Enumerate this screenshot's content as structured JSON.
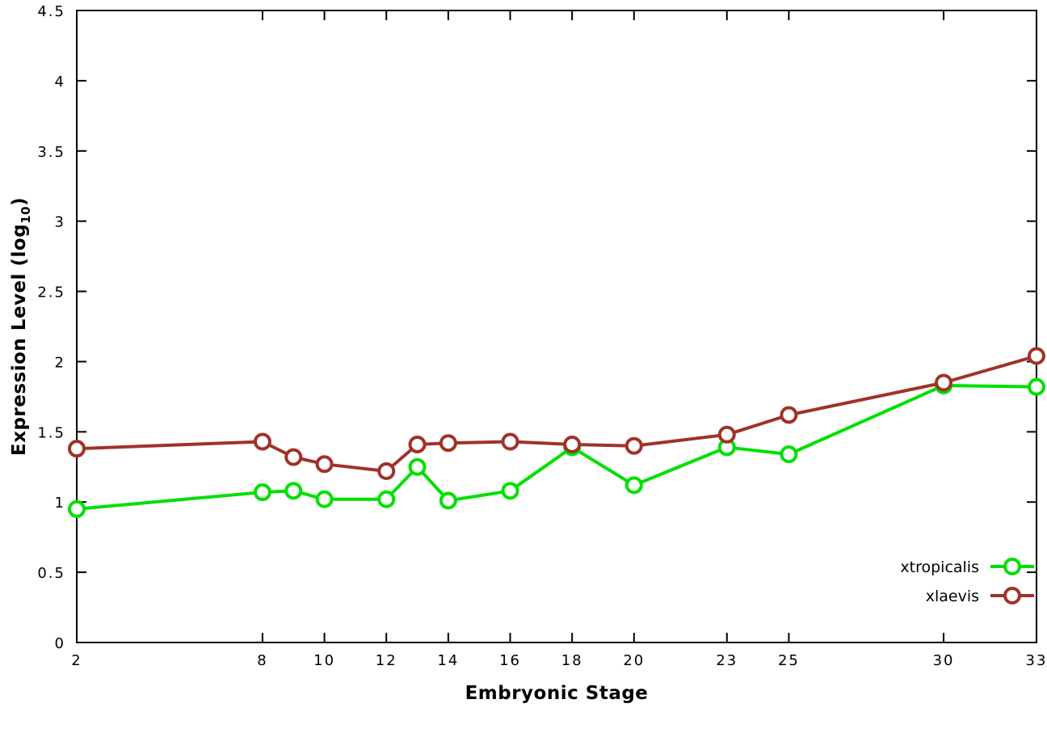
{
  "chart_data": {
    "type": "line",
    "title": "",
    "xlabel": "Embryonic Stage",
    "ylabel": "Expression Level (log10)",
    "ylabel_parts": {
      "pre": "Expression Level (log",
      "sub": "10",
      "post": ")"
    },
    "x": [
      2,
      8,
      9,
      10,
      12,
      13,
      14,
      16,
      18,
      20,
      23,
      25,
      30,
      33
    ],
    "xticks": [
      2,
      8,
      10,
      12,
      14,
      16,
      18,
      20,
      23,
      25,
      30,
      33
    ],
    "yticks": [
      0,
      0.5,
      1,
      1.5,
      2,
      2.5,
      3,
      3.5,
      4,
      4.5
    ],
    "xlim": [
      2,
      33
    ],
    "ylim": [
      0,
      4.5
    ],
    "grid": false,
    "legend": {
      "position": "bottom-right",
      "entries": [
        "xtropicalis",
        "xlaevis"
      ]
    },
    "axis_color": "#000000",
    "background_color": "#ffffff",
    "series": [
      {
        "name": "xtropicalis",
        "color": "#00e000",
        "values": [
          0.95,
          1.07,
          1.08,
          1.02,
          1.02,
          1.25,
          1.01,
          1.08,
          1.39,
          1.12,
          1.39,
          1.34,
          1.83,
          1.82
        ]
      },
      {
        "name": "xlaevis",
        "color": "#a03228",
        "values": [
          1.38,
          1.43,
          1.32,
          1.27,
          1.22,
          1.41,
          1.42,
          1.43,
          1.41,
          1.4,
          1.48,
          1.62,
          1.85,
          2.04
        ]
      }
    ]
  }
}
